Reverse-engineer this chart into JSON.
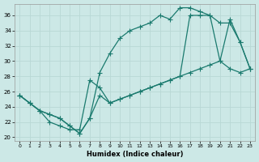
{
  "xlabel": "Humidex (Indice chaleur)",
  "bg_color": "#cce8e6",
  "line_color": "#1a7a6e",
  "grid_color": "#b8d8d5",
  "ylim": [
    19.5,
    37.5
  ],
  "xlim": [
    -0.5,
    23.5
  ],
  "yticks": [
    20,
    22,
    24,
    26,
    28,
    30,
    32,
    34,
    36
  ],
  "xticks": [
    0,
    1,
    2,
    3,
    4,
    5,
    6,
    7,
    8,
    9,
    10,
    11,
    12,
    13,
    14,
    15,
    16,
    17,
    18,
    19,
    20,
    21,
    22,
    23
  ],
  "curve1_x": [
    0,
    1,
    2,
    3,
    4,
    5,
    6,
    7,
    8,
    9,
    10,
    11,
    12,
    13,
    14,
    15,
    16,
    17,
    18,
    19,
    20,
    21,
    22,
    23
  ],
  "curve1_y": [
    25.5,
    24.5,
    23.5,
    23.0,
    22.5,
    21.5,
    20.5,
    22.5,
    28.5,
    31.0,
    33.0,
    34.0,
    34.5,
    35.0,
    36.0,
    35.5,
    37.0,
    37.0,
    36.5,
    36.0,
    35.0,
    35.0,
    32.5,
    29.0
  ],
  "curve2_x": [
    0,
    1,
    2,
    3,
    4,
    5,
    6,
    7,
    8,
    9,
    10,
    11,
    12,
    13,
    14,
    15,
    16,
    17,
    18,
    19,
    20,
    21,
    22,
    23
  ],
  "curve2_y": [
    25.5,
    24.5,
    23.5,
    22.0,
    21.5,
    21.0,
    21.0,
    27.5,
    26.5,
    24.5,
    25.0,
    25.5,
    26.0,
    26.5,
    27.0,
    27.5,
    28.0,
    28.5,
    29.0,
    29.5,
    30.0,
    29.0,
    28.5,
    29.0
  ],
  "curve3_x": [
    0,
    1,
    2,
    3,
    4,
    5,
    6,
    7,
    8,
    9,
    10,
    11,
    12,
    13,
    14,
    15,
    16,
    17,
    18,
    19,
    20,
    21,
    22,
    23
  ],
  "curve3_y": [
    25.5,
    24.5,
    23.5,
    23.0,
    22.5,
    21.5,
    20.5,
    22.5,
    25.5,
    24.5,
    25.0,
    25.5,
    26.0,
    26.5,
    27.0,
    27.5,
    28.0,
    36.0,
    36.0,
    36.0,
    30.0,
    35.5,
    32.5,
    29.0
  ],
  "marker_size": 2.5,
  "linewidth": 0.9
}
